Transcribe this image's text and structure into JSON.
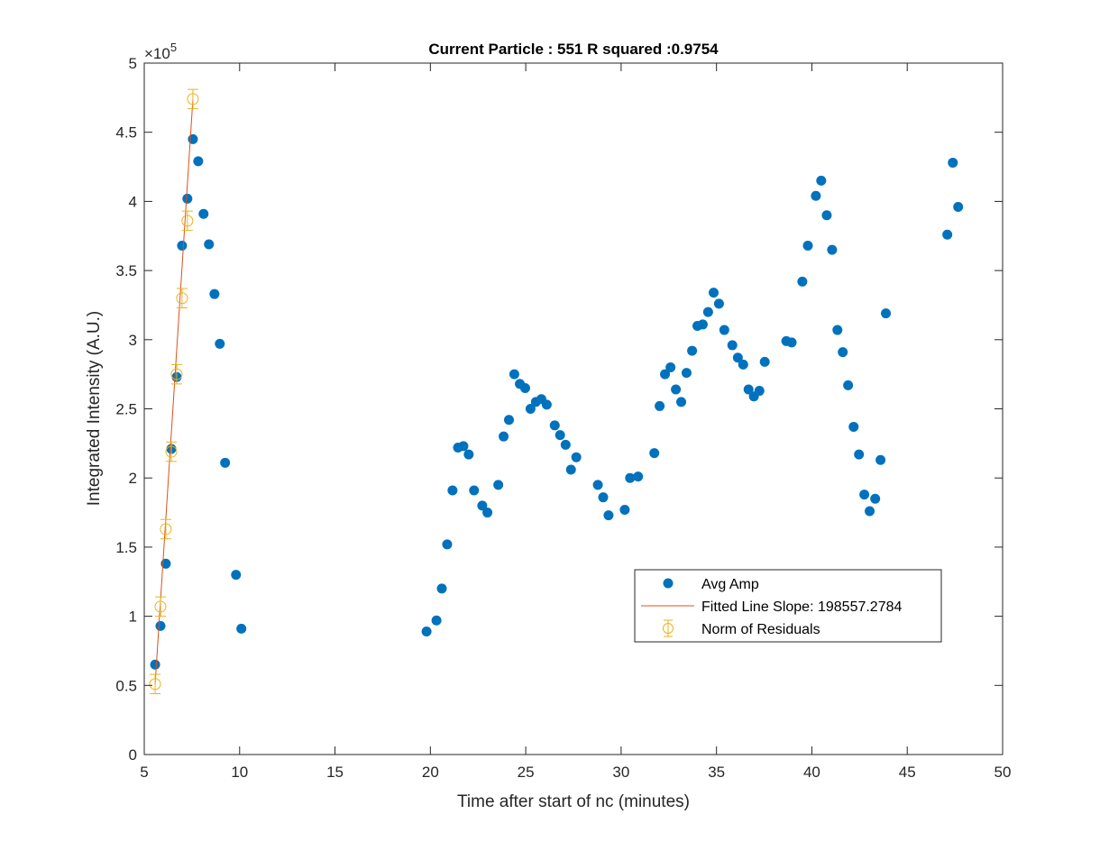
{
  "chart_data": {
    "type": "scatter",
    "title": "Current Particle : 551   R squared :0.9754",
    "xlabel": "Time after start of nc (minutes)",
    "ylabel": "Integrated Intensity (A.U.)",
    "xlim": [
      5,
      50
    ],
    "ylim": [
      0,
      500000
    ],
    "y_exponent_base": "×10",
    "y_exponent": "5",
    "x_ticks": [
      5,
      10,
      15,
      20,
      25,
      30,
      35,
      40,
      45,
      50
    ],
    "x_tick_labels": [
      "5",
      "10",
      "15",
      "20",
      "25",
      "30",
      "35",
      "40",
      "45",
      "50"
    ],
    "y_ticks": [
      0,
      50000,
      100000,
      150000,
      200000,
      250000,
      300000,
      350000,
      400000,
      450000,
      500000
    ],
    "y_tick_labels": [
      "0",
      "0.5",
      "1",
      "1.5",
      "2",
      "2.5",
      "3",
      "3.5",
      "4",
      "4.5",
      "5"
    ],
    "grid": false,
    "legend_position": "lower-right",
    "colors": {
      "avg_amp": "#0072BD",
      "fit": "#D95319",
      "residuals": "#EDB120",
      "axis": "#262626"
    },
    "series": [
      {
        "name": "Avg Amp",
        "kind": "scatter",
        "points": [
          [
            5.57,
            65000
          ],
          [
            5.85,
            93000
          ],
          [
            6.13,
            138000
          ],
          [
            6.42,
            221000
          ],
          [
            6.7,
            273000
          ],
          [
            6.98,
            368000
          ],
          [
            7.26,
            402000
          ],
          [
            7.55,
            445000
          ],
          [
            7.83,
            429000
          ],
          [
            8.11,
            391000
          ],
          [
            8.39,
            369000
          ],
          [
            8.68,
            333000
          ],
          [
            8.96,
            297000
          ],
          [
            9.24,
            211000
          ],
          [
            9.81,
            130000
          ],
          [
            10.09,
            91000
          ],
          [
            19.8,
            89000
          ],
          [
            20.32,
            97000
          ],
          [
            20.6,
            120000
          ],
          [
            20.88,
            152000
          ],
          [
            21.16,
            191000
          ],
          [
            21.45,
            222000
          ],
          [
            21.73,
            223000
          ],
          [
            22.01,
            217000
          ],
          [
            22.29,
            191000
          ],
          [
            22.72,
            180000
          ],
          [
            22.99,
            175000
          ],
          [
            23.56,
            195000
          ],
          [
            23.84,
            230000
          ],
          [
            24.12,
            242000
          ],
          [
            24.4,
            275000
          ],
          [
            24.69,
            268000
          ],
          [
            24.97,
            265000
          ],
          [
            25.25,
            250000
          ],
          [
            25.53,
            255000
          ],
          [
            25.82,
            257000
          ],
          [
            26.1,
            253000
          ],
          [
            26.52,
            238000
          ],
          [
            26.8,
            231000
          ],
          [
            27.09,
            224000
          ],
          [
            27.37,
            206000
          ],
          [
            27.65,
            215000
          ],
          [
            28.78,
            195000
          ],
          [
            29.06,
            186000
          ],
          [
            29.34,
            173000
          ],
          [
            30.19,
            177000
          ],
          [
            30.47,
            200000
          ],
          [
            30.89,
            201000
          ],
          [
            31.74,
            218000
          ],
          [
            32.02,
            252000
          ],
          [
            32.3,
            275000
          ],
          [
            32.59,
            280000
          ],
          [
            32.87,
            264000
          ],
          [
            33.15,
            255000
          ],
          [
            33.43,
            276000
          ],
          [
            33.72,
            292000
          ],
          [
            34.0,
            310000
          ],
          [
            34.28,
            311000
          ],
          [
            34.56,
            320000
          ],
          [
            34.85,
            334000
          ],
          [
            35.13,
            326000
          ],
          [
            35.41,
            307000
          ],
          [
            35.83,
            296000
          ],
          [
            36.12,
            287000
          ],
          [
            36.4,
            282000
          ],
          [
            36.68,
            264000
          ],
          [
            36.96,
            259000
          ],
          [
            37.25,
            263000
          ],
          [
            37.53,
            284000
          ],
          [
            38.66,
            299000
          ],
          [
            38.94,
            298000
          ],
          [
            39.5,
            342000
          ],
          [
            39.79,
            368000
          ],
          [
            40.21,
            404000
          ],
          [
            40.49,
            415000
          ],
          [
            40.78,
            390000
          ],
          [
            41.06,
            365000
          ],
          [
            41.34,
            307000
          ],
          [
            41.62,
            291000
          ],
          [
            41.9,
            267000
          ],
          [
            42.19,
            237000
          ],
          [
            42.47,
            217000
          ],
          [
            42.75,
            188000
          ],
          [
            43.03,
            176000
          ],
          [
            43.32,
            185000
          ],
          [
            43.6,
            213000
          ],
          [
            43.88,
            319000
          ],
          [
            47.1,
            376000
          ],
          [
            47.39,
            428000
          ],
          [
            47.67,
            396000
          ]
        ]
      },
      {
        "name": "Fitted Line Slope: 198557.2784",
        "kind": "line",
        "points": [
          [
            5.57,
            51000
          ],
          [
            7.55,
            474000
          ]
        ]
      },
      {
        "name": "Norm of Residuals",
        "kind": "errorbar",
        "error": 7000,
        "points": [
          [
            5.57,
            51000
          ],
          [
            5.85,
            107000
          ],
          [
            6.13,
            163000
          ],
          [
            6.42,
            219000
          ],
          [
            6.7,
            275000
          ],
          [
            6.98,
            330000
          ],
          [
            7.26,
            386000
          ],
          [
            7.55,
            474000
          ]
        ]
      }
    ]
  }
}
